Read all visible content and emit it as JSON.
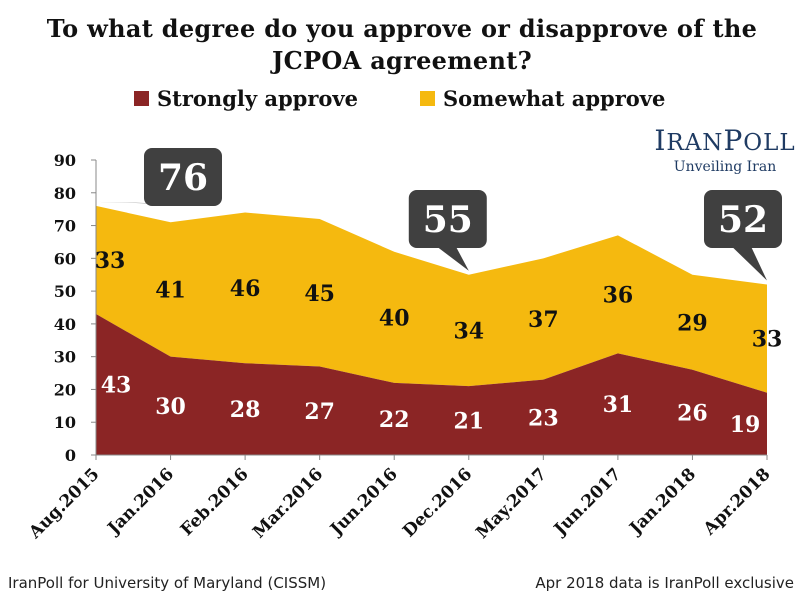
{
  "chart_data": {
    "type": "area",
    "title": "To what degree do you approve or disapprove of the JCPOA agreement?",
    "title_line1": "To what degree do you approve or disapprove of the",
    "title_line2": "JCPOA agreement?",
    "categories": [
      "Aug.2015",
      "Jan.2016",
      "Feb.2016",
      "Mar.2016",
      "Jun.2016",
      "Dec.2016",
      "May.2017",
      "Jun.2017",
      "Jan.2018",
      "Apr.2018"
    ],
    "series": [
      {
        "name": "Strongly approve",
        "values": [
          43,
          30,
          28,
          27,
          22,
          21,
          23,
          31,
          26,
          19
        ],
        "color": "#8b2525",
        "label_color": "#ffffff"
      },
      {
        "name": "Somewhat approve",
        "values": [
          33,
          41,
          46,
          45,
          40,
          34,
          37,
          36,
          29,
          33
        ],
        "color": "#f5b90f",
        "label_color": "#111111"
      }
    ],
    "stacked": true,
    "ylim": [
      0,
      90
    ],
    "yticks": [
      "0",
      "10",
      "20",
      "30",
      "40",
      "50",
      "60",
      "70",
      "80",
      "90"
    ],
    "grid": false,
    "legend_position": "top",
    "callouts": [
      {
        "index": 0,
        "text": "76"
      },
      {
        "index": 5,
        "text": "55"
      },
      {
        "index": 9,
        "text": "52"
      }
    ],
    "callout_color": "#404040"
  },
  "logo": {
    "main": "IRANPOLL",
    "sub": "Unveiling Iran"
  },
  "footer": {
    "left": "IranPoll for University of Maryland (CISSM)",
    "right": "Apr 2018 data is IranPoll exclusive"
  }
}
